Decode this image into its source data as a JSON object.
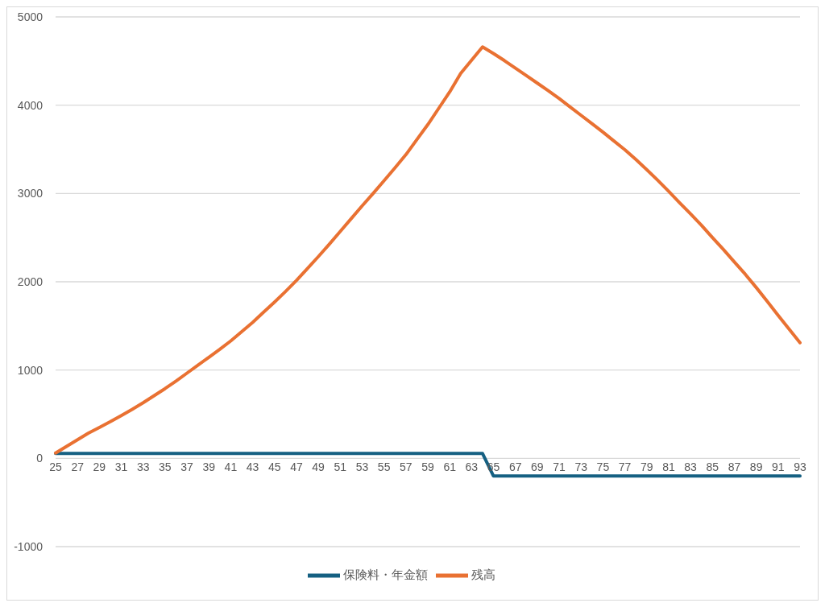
{
  "chart_data": {
    "type": "line",
    "categories": [
      "25",
      null,
      "27",
      null,
      "29",
      null,
      "31",
      null,
      "33",
      null,
      "35",
      null,
      "37",
      null,
      "39",
      null,
      "41",
      null,
      "43",
      null,
      "45",
      null,
      "47",
      null,
      "49",
      null,
      "51",
      null,
      "53",
      null,
      "55",
      null,
      "57",
      null,
      "59",
      null,
      "61",
      null,
      "63",
      null,
      "65",
      null,
      "67",
      null,
      "69",
      null,
      "71",
      null,
      "73",
      null,
      "75",
      null,
      "77",
      null,
      "79",
      null,
      "81",
      null,
      "83",
      null,
      "85",
      null,
      "87",
      null,
      "89",
      null,
      "91",
      null,
      "93"
    ],
    "series": [
      {
        "name": "保険料・年金額",
        "color": "#156082",
        "values": [
          55,
          55,
          55,
          55,
          55,
          55,
          55,
          55,
          55,
          55,
          55,
          55,
          55,
          55,
          55,
          55,
          55,
          55,
          55,
          55,
          55,
          55,
          55,
          55,
          55,
          55,
          55,
          55,
          55,
          55,
          55,
          55,
          55,
          55,
          55,
          55,
          55,
          55,
          55,
          55,
          -200,
          -200,
          -200,
          -200,
          -200,
          -200,
          -200,
          -200,
          -200,
          -200,
          -200,
          -200,
          -200,
          -200,
          -200,
          -200,
          -200,
          -200,
          -200,
          -200,
          -200,
          -200,
          -200,
          -200,
          -200,
          -200,
          -200,
          -200,
          -200
        ]
      },
      {
        "name": "残高",
        "color": "#e97132",
        "values": [
          60,
          135,
          210,
          285,
          350,
          415,
          485,
          555,
          630,
          710,
          790,
          875,
          965,
          1055,
          1145,
          1235,
          1330,
          1435,
          1540,
          1655,
          1770,
          1890,
          2015,
          2150,
          2285,
          2425,
          2570,
          2715,
          2860,
          3000,
          3145,
          3290,
          3440,
          3610,
          3780,
          3965,
          4150,
          4360,
          4510,
          4660,
          4585,
          4505,
          4420,
          4335,
          4250,
          4165,
          4075,
          3980,
          3885,
          3790,
          3695,
          3595,
          3495,
          3385,
          3270,
          3150,
          3025,
          2895,
          2770,
          2640,
          2500,
          2365,
          2225,
          2085,
          1935,
          1780,
          1620,
          1465,
          1310
        ]
      }
    ],
    "ylim": [
      -1000,
      5000
    ],
    "yticks": [
      -1000,
      0,
      1000,
      2000,
      3000,
      4000,
      5000
    ],
    "grid": "y",
    "legend": "bottom",
    "marker": "none",
    "line_style": "solid"
  }
}
